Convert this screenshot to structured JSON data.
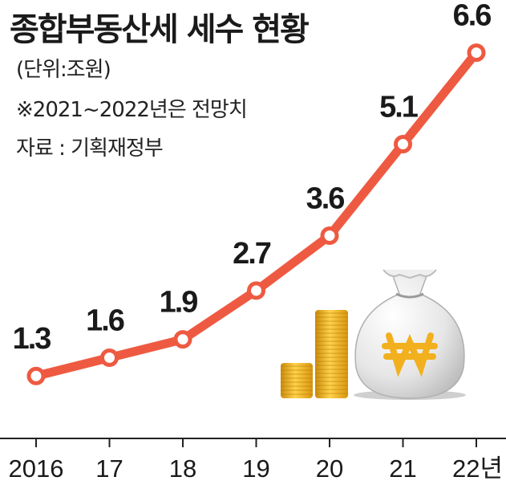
{
  "title": "종합부동산세 세수 현황",
  "unit": "(단위:조원)",
  "note": "※2021~2022년은 전망치",
  "source": "자료 : 기획재정부",
  "colors": {
    "line": "#ee5a41",
    "point_fill": "#ffffff",
    "axis": "#222222",
    "coin": "#f2b01e",
    "bag": "#d9d9d9",
    "won": "#f2b01e"
  },
  "icons": [
    "coin-stack-icon",
    "money-bag-won-icon"
  ],
  "chart_data": {
    "type": "line",
    "x": [
      "2016",
      "17",
      "18",
      "19",
      "20",
      "21",
      "22년"
    ],
    "values": [
      1.3,
      1.6,
      1.9,
      2.7,
      3.6,
      5.1,
      6.6
    ],
    "labels": [
      "1.3",
      "1.6",
      "1.9",
      "2.7",
      "3.6",
      "5.1",
      "6.6"
    ],
    "ylim": [
      0,
      7.2
    ],
    "grid": false,
    "legend": "none",
    "xlabel": "",
    "ylabel": ""
  }
}
